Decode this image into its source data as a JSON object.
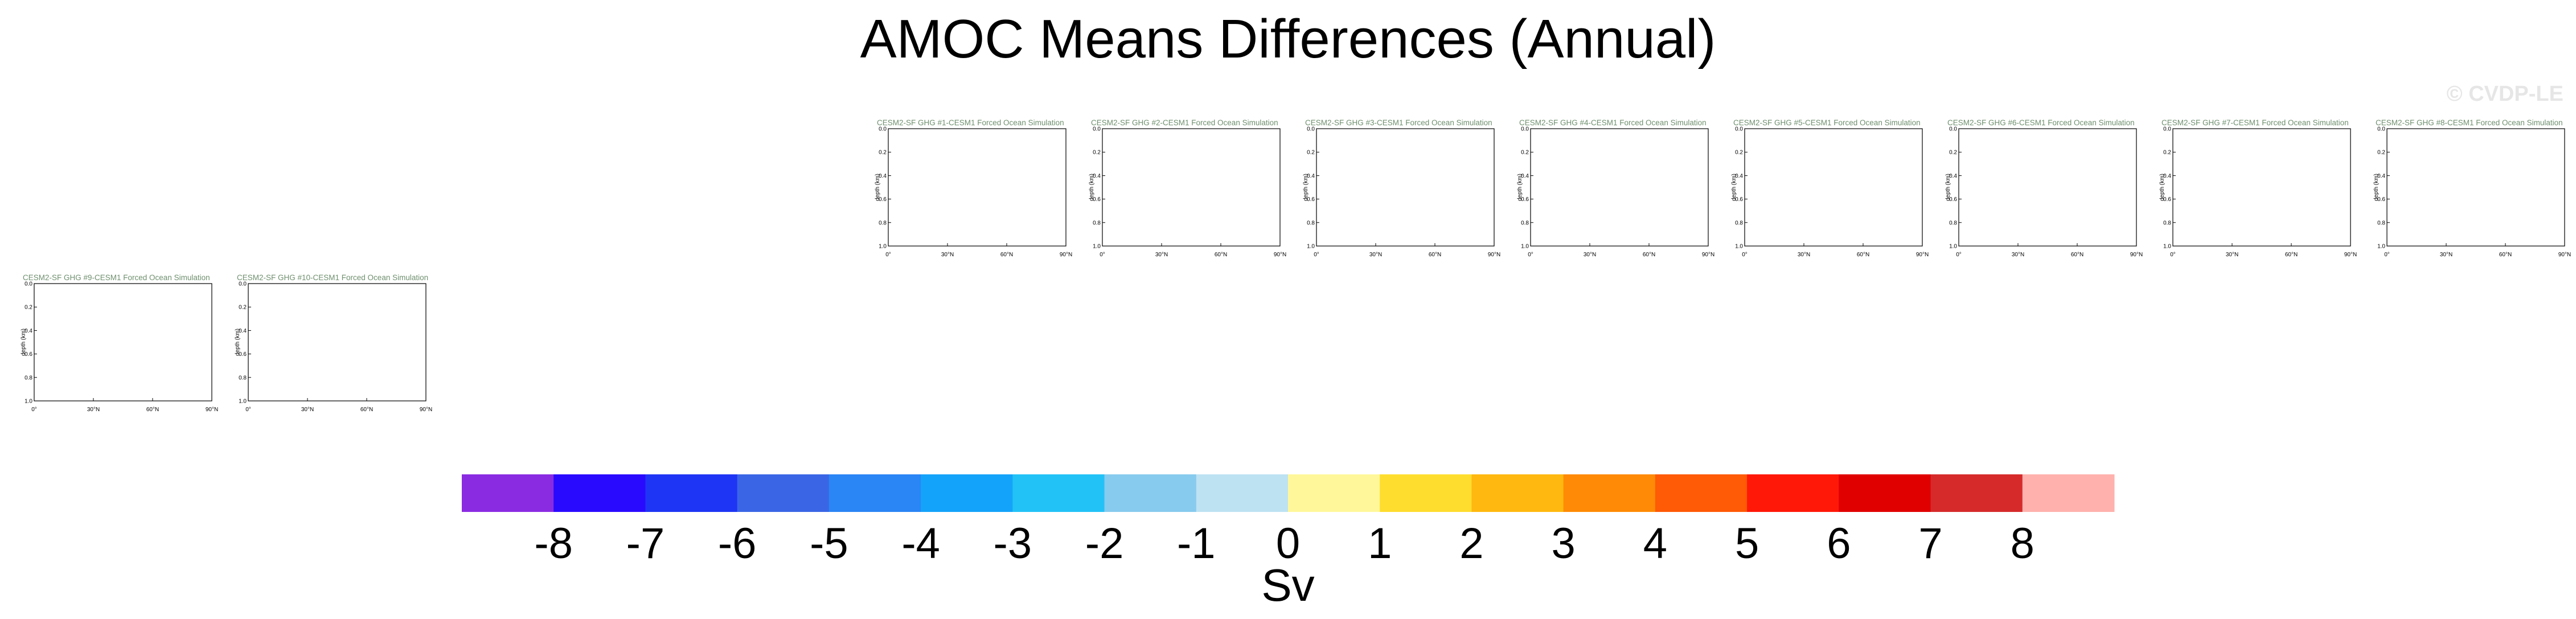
{
  "title": "AMOC Means Differences (Annual)",
  "watermark": "© CVDP-LE",
  "chart_data": {
    "type": "heatmap",
    "panels": [
      {
        "title": "CESM2-SF GHG #1-CESM1 Forced Ocean Simulation"
      },
      {
        "title": "CESM2-SF GHG #2-CESM1 Forced Ocean Simulation"
      },
      {
        "title": "CESM2-SF GHG #3-CESM1 Forced Ocean Simulation"
      },
      {
        "title": "CESM2-SF GHG #4-CESM1 Forced Ocean Simulation"
      },
      {
        "title": "CESM2-SF GHG #5-CESM1 Forced Ocean Simulation"
      },
      {
        "title": "CESM2-SF GHG #6-CESM1 Forced Ocean Simulation"
      },
      {
        "title": "CESM2-SF GHG #7-CESM1 Forced Ocean Simulation"
      },
      {
        "title": "CESM2-SF GHG #8-CESM1 Forced Ocean Simulation"
      },
      {
        "title": "CESM2-SF GHG #9-CESM1 Forced Ocean Simulation"
      },
      {
        "title": "CESM2-SF GHG #10-CESM1 Forced Ocean Simulation"
      }
    ],
    "xlabel": "",
    "ylabel": "depth (km)",
    "x_ticks": [
      "0°",
      "30°N",
      "60°N",
      "90°N"
    ],
    "y_ticks": [
      "0.0",
      "0.2",
      "0.4",
      "0.6",
      "0.8",
      "1.0"
    ],
    "xlim": [
      0,
      90
    ],
    "ylim": [
      0,
      1.0
    ],
    "colorbar": {
      "labels": [
        "-8",
        "-7",
        "-6",
        "-5",
        "-4",
        "-3",
        "-2",
        "-1",
        "0",
        "1",
        "2",
        "3",
        "4",
        "5",
        "6",
        "7",
        "8"
      ],
      "colors": [
        "#8a2be2",
        "#2a0aff",
        "#1e35f5",
        "#3a66e6",
        "#2a85f5",
        "#14a3fa",
        "#22c2f7",
        "#87cbee",
        "#bde2f2",
        "#fff79a",
        "#ffdd2e",
        "#ffb80f",
        "#ff8a05",
        "#ff5a05",
        "#ff1808",
        "#e00000",
        "#d62a2a",
        "#ffb1ad"
      ],
      "units": "Sv"
    }
  }
}
